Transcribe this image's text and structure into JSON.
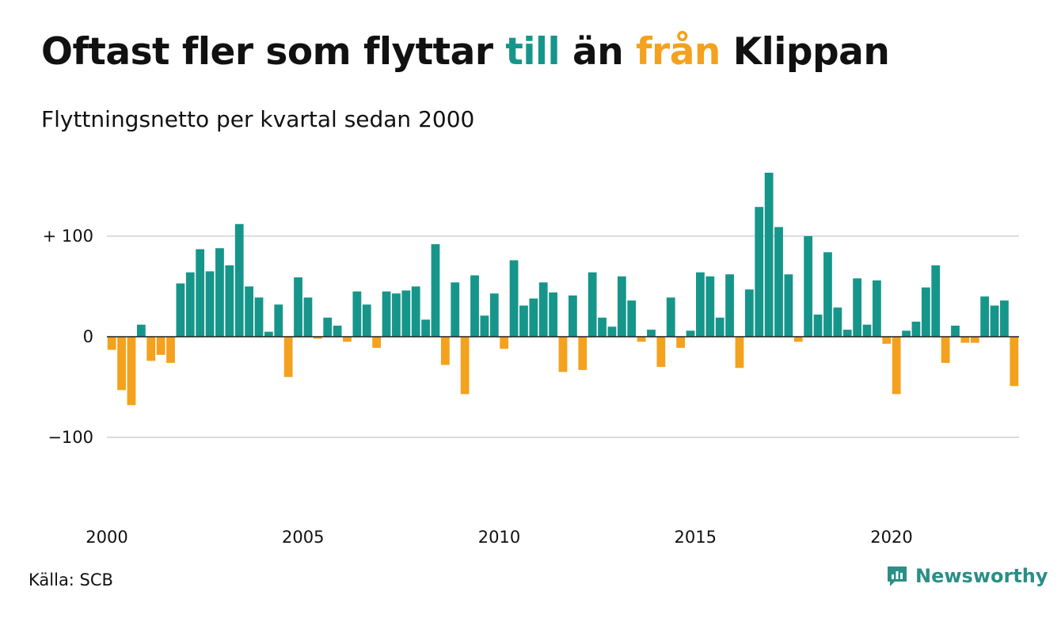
{
  "title": {
    "part1": "Oftast fler som flyttar ",
    "till": "till",
    "part2": " än ",
    "fran": "från",
    "part3": " Klippan"
  },
  "subtitle": "Flyttningsnetto per kvartal sedan 2000",
  "source": "Källa: SCB",
  "brand": {
    "name": "Newsworthy",
    "icon": "newsworthy-logo-icon"
  },
  "colors": {
    "positive": "#16968a",
    "negative": "#f4a11e",
    "grid": "#dddddd",
    "text": "#111111"
  },
  "chart_data": {
    "type": "bar",
    "x_start": "2000 Q1",
    "frequency": "quarterly",
    "values": [
      -13,
      -53,
      -68,
      12,
      -24,
      -18,
      -26,
      53,
      64,
      87,
      65,
      88,
      71,
      112,
      50,
      39,
      5,
      32,
      -40,
      59,
      39,
      -2,
      19,
      11,
      -5,
      45,
      32,
      -11,
      45,
      43,
      46,
      50,
      17,
      92,
      -28,
      54,
      -57,
      61,
      21,
      43,
      -12,
      76,
      31,
      38,
      54,
      44,
      -35,
      41,
      -33,
      64,
      19,
      10,
      60,
      36,
      -5,
      7,
      -30,
      39,
      -11,
      6,
      64,
      60,
      19,
      62,
      -31,
      47,
      129,
      163,
      109,
      62,
      -5,
      100,
      22,
      84,
      29,
      7,
      58,
      12,
      56,
      -7,
      -57,
      6,
      15,
      49,
      71,
      -26,
      11,
      -6,
      -6,
      40,
      31,
      36,
      -49
    ],
    "x_ticks": [
      "2000",
      "2005",
      "2010",
      "2015",
      "2020"
    ],
    "y_ticks": [
      {
        "value": 100,
        "label": "+ 100"
      },
      {
        "value": 0,
        "label": "0"
      },
      {
        "value": -100,
        "label": "−100"
      }
    ],
    "ylim": [
      -175,
      175
    ],
    "grid": true,
    "legend": "none"
  }
}
